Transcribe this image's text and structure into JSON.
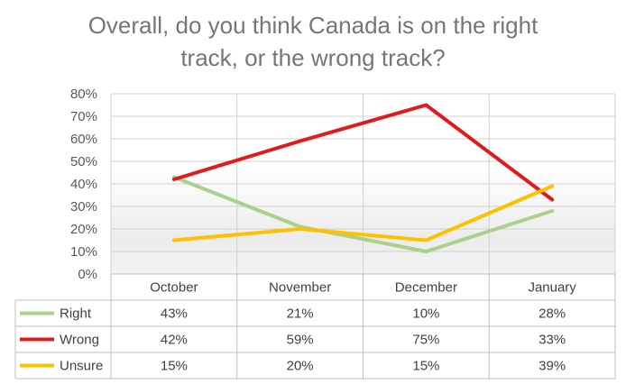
{
  "chart_data": {
    "type": "line",
    "title_lines": [
      "Overall, do you think Canada is on the right",
      "track, or the wrong track?"
    ],
    "categories": [
      "October",
      "November",
      "December",
      "January"
    ],
    "series": [
      {
        "name": "Right",
        "values": [
          43,
          21,
          10,
          28
        ],
        "labels": [
          "43%",
          "21%",
          "10%",
          "28%"
        ],
        "color": "#a9d18e"
      },
      {
        "name": "Wrong",
        "values": [
          42,
          59,
          75,
          33
        ],
        "labels": [
          "42%",
          "59%",
          "75%",
          "33%"
        ],
        "color": "#e01b1b"
      },
      {
        "name": "Unsure",
        "values": [
          15,
          20,
          15,
          39
        ],
        "labels": [
          "15%",
          "20%",
          "15%",
          "39%"
        ],
        "color": "#ffc000"
      }
    ],
    "ylim": [
      0,
      80
    ],
    "yticks": [
      0,
      10,
      20,
      30,
      40,
      50,
      60,
      70,
      80
    ],
    "ytick_labels": [
      "0%",
      "10%",
      "20%",
      "30%",
      "40%",
      "50%",
      "60%",
      "70%",
      "80%"
    ],
    "grid": true,
    "data_table": true,
    "xlabel": "",
    "ylabel": ""
  }
}
